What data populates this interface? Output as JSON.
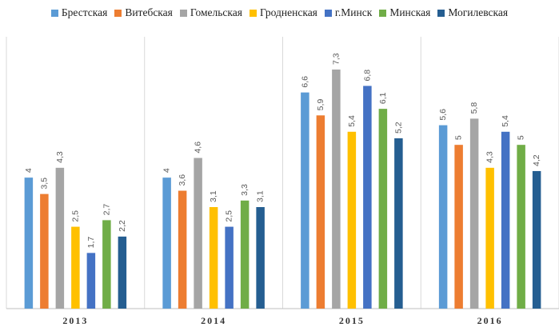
{
  "chart_data": {
    "type": "bar",
    "categories": [
      "2013",
      "2014",
      "2015",
      "2016"
    ],
    "series": [
      {
        "name": "Брестская",
        "color": "#5B9BD5",
        "values": [
          4,
          4,
          6.6,
          5.6
        ],
        "labels": [
          "4",
          "4",
          "6,6",
          "5,6"
        ]
      },
      {
        "name": "Витебская",
        "color": "#ED7D31",
        "values": [
          3.5,
          3.6,
          5.9,
          5
        ],
        "labels": [
          "3,5",
          "3,6",
          "5,9",
          "5"
        ]
      },
      {
        "name": "Гомельская",
        "color": "#A5A5A5",
        "values": [
          4.3,
          4.6,
          7.3,
          5.8
        ],
        "labels": [
          "4,3",
          "4,6",
          "7,3",
          "5,8"
        ]
      },
      {
        "name": "Гродненская",
        "color": "#FFC000",
        "values": [
          2.5,
          3.1,
          5.4,
          4.3
        ],
        "labels": [
          "2,5",
          "3,1",
          "5,4",
          "4,3"
        ]
      },
      {
        "name": "г.Минск",
        "color": "#4472C4",
        "values": [
          1.7,
          2.5,
          6.8,
          5.4
        ],
        "labels": [
          "1,7",
          "2,5",
          "6,8",
          "5,4"
        ]
      },
      {
        "name": "Минская",
        "color": "#70AD47",
        "values": [
          2.7,
          3.3,
          6.1,
          5
        ],
        "labels": [
          "2,7",
          "3,3",
          "6,1",
          "5"
        ]
      },
      {
        "name": "Могилевская",
        "color": "#255E91",
        "values": [
          2.2,
          3.1,
          5.2,
          4.2
        ],
        "labels": [
          "2,2",
          "3,1",
          "5,2",
          "4,2"
        ]
      }
    ],
    "ylim": [
      0,
      8.3
    ],
    "grid": false,
    "legend_position": "top"
  }
}
